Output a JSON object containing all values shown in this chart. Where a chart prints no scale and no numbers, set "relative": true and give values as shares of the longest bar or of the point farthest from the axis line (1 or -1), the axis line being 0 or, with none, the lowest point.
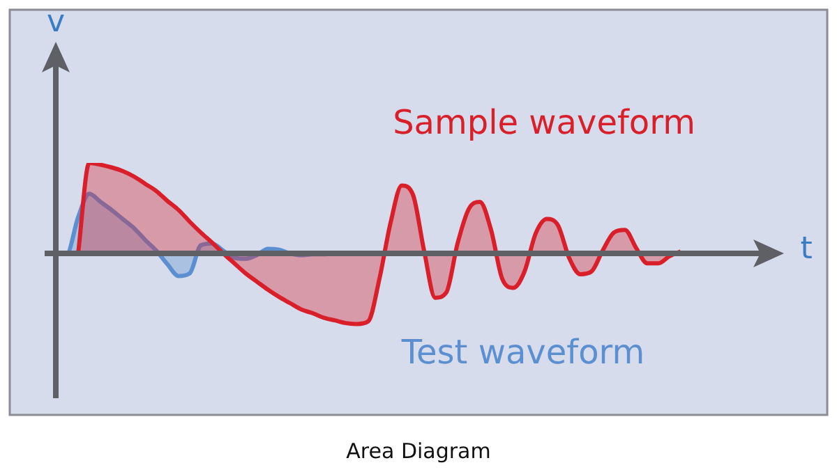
{
  "chart_data": {
    "type": "area",
    "relative": true,
    "xlabel": "t",
    "ylabel": "v",
    "marker": "none",
    "legend": false,
    "categories": [
      null,
      null,
      null,
      null,
      null,
      null,
      null,
      null,
      null,
      null,
      null,
      null,
      null,
      null,
      null,
      null,
      null,
      null,
      null,
      null,
      null,
      null,
      null,
      null,
      null,
      null,
      null,
      null,
      null,
      null,
      null,
      null,
      null,
      null,
      null,
      null,
      null,
      null,
      null,
      null,
      null,
      null,
      null,
      null,
      null,
      null,
      null,
      null,
      null,
      null,
      null,
      null,
      null,
      null,
      null,
      null,
      null
    ],
    "series": [
      {
        "name": "Sample waveform",
        "color": "#d9202a",
        "values": [
          null,
          null,
          0,
          1.0,
          0.98,
          0.95,
          0.91,
          0.85,
          0.77,
          0.69,
          0.58,
          0.48,
          0.35,
          0.23,
          0.12,
          0,
          -0.11,
          -0.22,
          -0.31,
          -0.4,
          -0.48,
          -0.55,
          -0.62,
          -0.66,
          -0.71,
          -0.74,
          -0.77,
          -0.78,
          -0.75,
          -0.28,
          0.34,
          0.75,
          0.65,
          0.03,
          -0.49,
          -0.43,
          0.11,
          0.49,
          0.57,
          0.26,
          -0.28,
          -0.38,
          -0.2,
          0.22,
          0.38,
          0.31,
          -0.05,
          -0.23,
          -0.2,
          0.03,
          0.23,
          0.26,
          0.06,
          -0.11,
          -0.11,
          -0.03,
          0.02
        ]
      },
      {
        "name": "Test waveform",
        "color": "#5b8fd0",
        "values": [
          0,
          0,
          0.4,
          0.66,
          0.57,
          0.48,
          0.38,
          0.28,
          0.15,
          0.03,
          -0.12,
          -0.25,
          -0.22,
          0.09,
          0.11,
          0.03,
          -0.05,
          -0.06,
          -0.02,
          0.05,
          0.04,
          0,
          -0.02,
          -0.01,
          -0.01,
          0,
          null,
          null,
          null,
          null,
          null,
          null,
          null,
          null,
          null,
          null,
          null,
          null,
          null,
          null,
          null,
          null,
          null,
          null,
          null,
          null,
          null,
          null,
          null,
          null,
          null,
          null,
          null,
          null,
          null,
          null,
          null
        ]
      }
    ],
    "annotations": [
      "Area Diagram"
    ]
  }
}
